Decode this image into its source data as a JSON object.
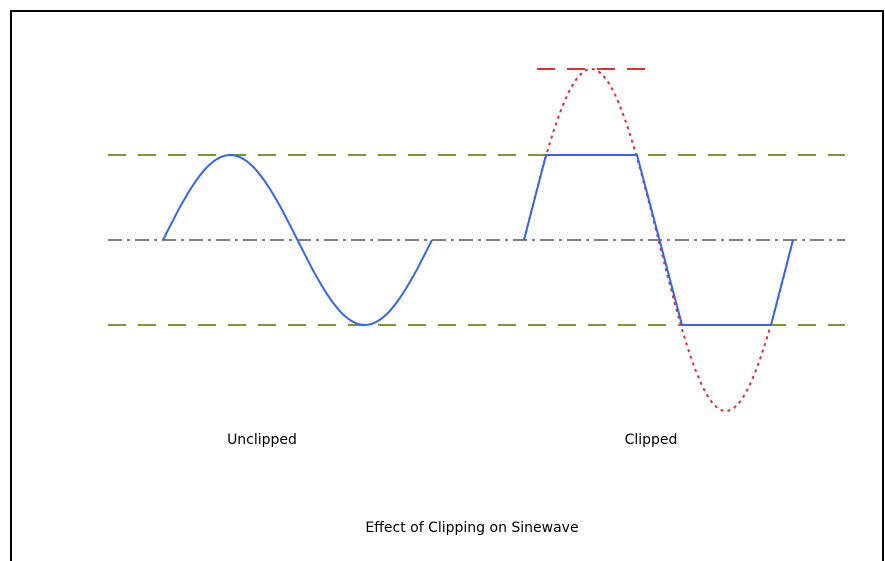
{
  "labels": {
    "unclipped": "Unclipped",
    "clipped": "Clipped"
  },
  "caption": "Effect of Clipping on Sinewave"
}
